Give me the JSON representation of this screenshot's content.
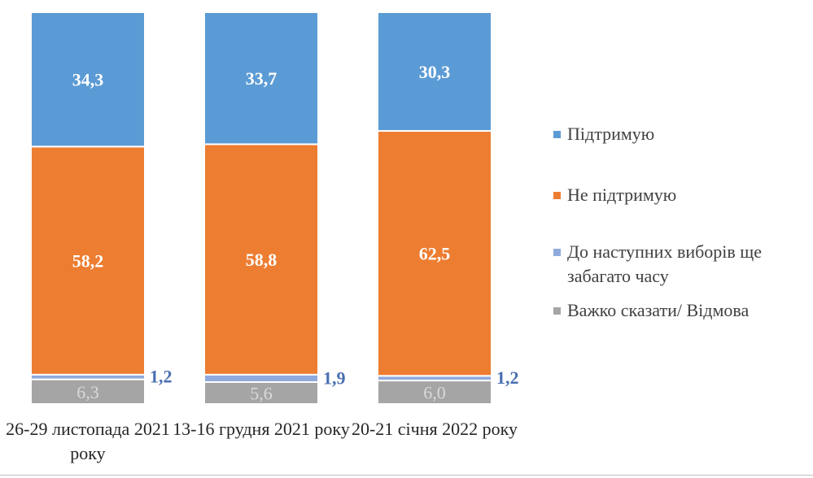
{
  "chart_data": {
    "type": "bar",
    "stacked": true,
    "categories": [
      "26-29 листопада 2021 року",
      "13-16 грудня 2021 року",
      "20-21 січня 2022 року"
    ],
    "series": [
      {
        "name": "Важко сказати/ Відмова",
        "color": "#a5a5a5",
        "label_color": "#d9d9d9",
        "values": [
          "6,3",
          "5,6",
          "6,0"
        ],
        "numeric": [
          6.3,
          5.6,
          6.0
        ]
      },
      {
        "name": "До наступних виборів ще забагато часу",
        "color": "#8faadc",
        "label_color": "#ffffff",
        "values": [
          "1,2",
          "1,9",
          "1,2"
        ],
        "numeric": [
          1.2,
          1.9,
          1.2
        ]
      },
      {
        "name": "Не підтримую",
        "color": "#ed7d31",
        "label_color": "#ffffff",
        "values": [
          "58,2",
          "58,8",
          "62,5"
        ],
        "numeric": [
          58.2,
          58.8,
          62.5
        ]
      },
      {
        "name": "Підтримую",
        "color": "#5b9bd5",
        "label_color": "#ffffff",
        "values": [
          "34,3",
          "33,7",
          "30,3"
        ],
        "numeric": [
          34.3,
          33.7,
          30.3
        ]
      }
    ],
    "ylim": [
      0,
      100
    ],
    "legend_position": "right",
    "grid": false
  },
  "legend": [
    {
      "label": "Підтримую",
      "color": "#5b9bd5"
    },
    {
      "label": "Не підтримую",
      "color": "#ed7d31"
    },
    {
      "label": "До наступних виборів ще забагато часу",
      "color": "#8faadc"
    },
    {
      "label": "Важко сказати/ Відмова",
      "color": "#a5a5a5"
    }
  ]
}
